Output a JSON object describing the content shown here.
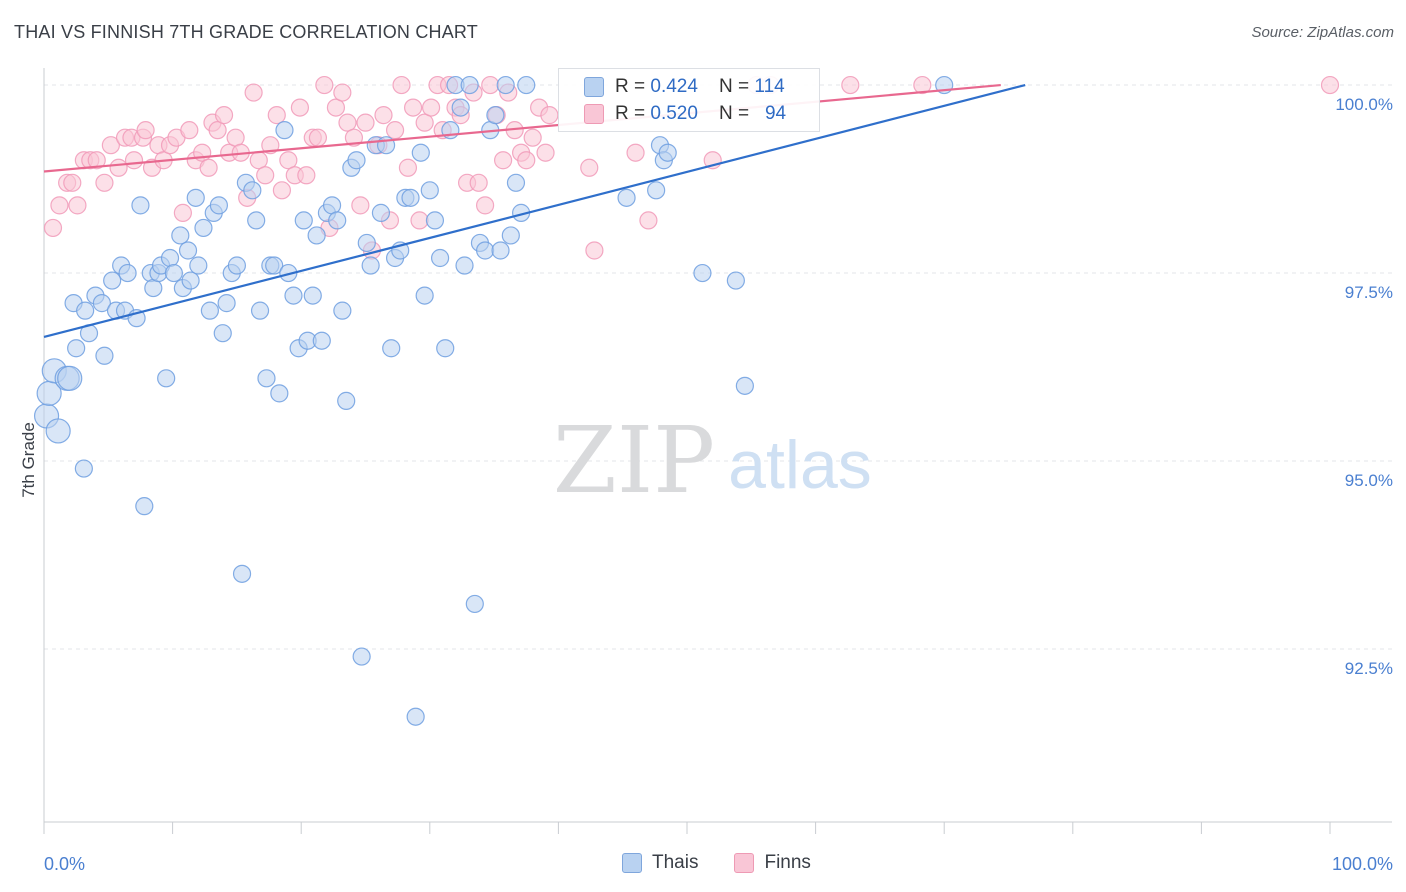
{
  "title": "THAI VS FINNISH 7TH GRADE CORRELATION CHART",
  "source": "Source: ZipAtlas.com",
  "watermark": {
    "zip": "ZIP",
    "atlas": "atlas"
  },
  "legend_stats": [
    {
      "r_label": "R = ",
      "r_value": "0.424",
      "n_label": "N = ",
      "n_value": "114",
      "color": "#6f9fe0"
    },
    {
      "r_label": "R = ",
      "r_value": "0.520",
      "n_label": "N = ",
      "n_value": "94",
      "color": "#f19ab8"
    }
  ],
  "bottom_legend": [
    {
      "label": "Thais"
    },
    {
      "label": "Finns"
    }
  ],
  "chart_data": {
    "type": "scatter",
    "title": "THAI VS FINNISH 7TH GRADE CORRELATION CHART",
    "xlabel": "",
    "ylabel": "7th Grade",
    "xlim": [
      0,
      100
    ],
    "ylim": [
      90.2,
      100.2
    ],
    "x_tick_labels": [
      "0.0%",
      "100.0%"
    ],
    "y_ticks": [
      92.5,
      95.0,
      97.5,
      100.0
    ],
    "y_tick_labels": [
      "92.5%",
      "95.0%",
      "97.5%",
      "100.0%"
    ],
    "grid": true,
    "series": [
      {
        "name": "Thais",
        "color": "#6f9fe0",
        "fill": "#b9d2f1",
        "trend": {
          "x0": 0,
          "y0": 96.65,
          "x1": 76.3,
          "y1": 100.0
        },
        "points": [
          [
            0.2,
            95.6
          ],
          [
            0.4,
            95.9
          ],
          [
            0.8,
            96.2
          ],
          [
            1.1,
            95.4
          ],
          [
            1.8,
            96.1
          ],
          [
            2.0,
            96.1
          ],
          [
            2.5,
            96.5
          ],
          [
            2.3,
            97.1
          ],
          [
            3.1,
            94.9
          ],
          [
            3.5,
            96.7
          ],
          [
            3.2,
            97.0
          ],
          [
            4.0,
            97.2
          ],
          [
            4.7,
            96.4
          ],
          [
            4.5,
            97.1
          ],
          [
            5.3,
            97.4
          ],
          [
            5.6,
            97.0
          ],
          [
            6.0,
            97.6
          ],
          [
            6.3,
            97.0
          ],
          [
            6.5,
            97.5
          ],
          [
            7.2,
            96.9
          ],
          [
            7.5,
            98.4
          ],
          [
            7.8,
            94.4
          ],
          [
            8.3,
            97.5
          ],
          [
            8.5,
            97.3
          ],
          [
            8.9,
            97.5
          ],
          [
            9.1,
            97.6
          ],
          [
            9.5,
            96.1
          ],
          [
            9.8,
            97.7
          ],
          [
            10.1,
            97.5
          ],
          [
            10.6,
            98.0
          ],
          [
            10.8,
            97.3
          ],
          [
            11.2,
            97.8
          ],
          [
            11.4,
            97.4
          ],
          [
            11.8,
            98.5
          ],
          [
            12.0,
            97.6
          ],
          [
            12.4,
            98.1
          ],
          [
            12.9,
            97.0
          ],
          [
            13.2,
            98.3
          ],
          [
            13.6,
            98.4
          ],
          [
            13.9,
            96.7
          ],
          [
            14.2,
            97.1
          ],
          [
            14.6,
            97.5
          ],
          [
            15.0,
            97.6
          ],
          [
            15.4,
            93.5
          ],
          [
            15.7,
            98.7
          ],
          [
            16.2,
            98.6
          ],
          [
            16.5,
            98.2
          ],
          [
            16.8,
            97.0
          ],
          [
            17.3,
            96.1
          ],
          [
            17.6,
            97.6
          ],
          [
            17.9,
            97.6
          ],
          [
            18.3,
            95.9
          ],
          [
            18.7,
            99.4
          ],
          [
            19.0,
            97.5
          ],
          [
            19.4,
            97.2
          ],
          [
            19.8,
            96.5
          ],
          [
            20.2,
            98.2
          ],
          [
            20.5,
            96.6
          ],
          [
            20.9,
            97.2
          ],
          [
            21.2,
            98.0
          ],
          [
            21.6,
            96.6
          ],
          [
            22.0,
            98.3
          ],
          [
            22.4,
            98.4
          ],
          [
            22.8,
            98.2
          ],
          [
            23.2,
            97.0
          ],
          [
            23.5,
            95.8
          ],
          [
            23.9,
            98.9
          ],
          [
            24.3,
            99.0
          ],
          [
            24.7,
            92.4
          ],
          [
            25.1,
            97.9
          ],
          [
            25.4,
            97.6
          ],
          [
            25.8,
            99.2
          ],
          [
            26.2,
            98.3
          ],
          [
            26.6,
            99.2
          ],
          [
            27.0,
            96.5
          ],
          [
            27.3,
            97.7
          ],
          [
            27.7,
            97.8
          ],
          [
            28.1,
            98.5
          ],
          [
            28.5,
            98.5
          ],
          [
            28.9,
            91.6
          ],
          [
            29.3,
            99.1
          ],
          [
            29.6,
            97.2
          ],
          [
            30.0,
            98.6
          ],
          [
            30.4,
            98.2
          ],
          [
            30.8,
            97.7
          ],
          [
            31.2,
            96.5
          ],
          [
            31.6,
            99.4
          ],
          [
            32.0,
            100.0
          ],
          [
            32.4,
            99.7
          ],
          [
            32.7,
            97.6
          ],
          [
            33.1,
            100.0
          ],
          [
            33.5,
            93.1
          ],
          [
            33.9,
            97.9
          ],
          [
            34.3,
            97.8
          ],
          [
            34.7,
            99.4
          ],
          [
            35.1,
            99.6
          ],
          [
            35.5,
            97.8
          ],
          [
            35.9,
            100.0
          ],
          [
            36.3,
            98.0
          ],
          [
            36.7,
            98.7
          ],
          [
            37.1,
            98.3
          ],
          [
            37.5,
            100.0
          ],
          [
            45.3,
            98.5
          ],
          [
            47.6,
            98.6
          ],
          [
            47.9,
            99.2
          ],
          [
            48.2,
            99.0
          ],
          [
            48.5,
            99.1
          ],
          [
            51.2,
            97.5
          ],
          [
            53.8,
            97.4
          ],
          [
            54.5,
            96.0
          ],
          [
            70.0,
            100.0
          ]
        ]
      },
      {
        "name": "Finns",
        "color": "#f19ab8",
        "fill": "#f9c6d6",
        "trend": {
          "x0": 0,
          "y0": 98.85,
          "x1": 74.4,
          "y1": 100.0
        },
        "points": [
          [
            0.7,
            98.1
          ],
          [
            1.2,
            98.4
          ],
          [
            1.8,
            98.7
          ],
          [
            2.2,
            98.7
          ],
          [
            2.6,
            98.4
          ],
          [
            3.1,
            99.0
          ],
          [
            3.6,
            99.0
          ],
          [
            4.1,
            99.0
          ],
          [
            4.7,
            98.7
          ],
          [
            5.2,
            99.2
          ],
          [
            5.8,
            98.9
          ],
          [
            6.3,
            99.3
          ],
          [
            6.8,
            99.3
          ],
          [
            7.0,
            99.0
          ],
          [
            7.7,
            99.3
          ],
          [
            7.9,
            99.4
          ],
          [
            8.4,
            98.9
          ],
          [
            8.9,
            99.2
          ],
          [
            9.3,
            99.0
          ],
          [
            9.8,
            99.2
          ],
          [
            10.3,
            99.3
          ],
          [
            10.8,
            98.3
          ],
          [
            11.3,
            99.4
          ],
          [
            11.8,
            99.0
          ],
          [
            12.3,
            99.1
          ],
          [
            12.8,
            98.9
          ],
          [
            13.1,
            99.5
          ],
          [
            13.5,
            99.4
          ],
          [
            14.0,
            99.6
          ],
          [
            14.4,
            99.1
          ],
          [
            14.9,
            99.3
          ],
          [
            15.3,
            99.1
          ],
          [
            15.8,
            98.5
          ],
          [
            16.3,
            99.9
          ],
          [
            16.7,
            99.0
          ],
          [
            17.2,
            98.8
          ],
          [
            17.6,
            99.2
          ],
          [
            18.1,
            99.6
          ],
          [
            18.5,
            98.6
          ],
          [
            19.0,
            99.0
          ],
          [
            19.5,
            98.8
          ],
          [
            19.9,
            99.7
          ],
          [
            20.4,
            98.8
          ],
          [
            20.9,
            99.3
          ],
          [
            21.3,
            99.3
          ],
          [
            21.8,
            100.0
          ],
          [
            22.2,
            98.1
          ],
          [
            22.7,
            99.7
          ],
          [
            23.2,
            99.9
          ],
          [
            23.6,
            99.5
          ],
          [
            24.1,
            99.3
          ],
          [
            24.6,
            98.4
          ],
          [
            25.0,
            99.5
          ],
          [
            25.5,
            97.8
          ],
          [
            26.0,
            99.2
          ],
          [
            26.4,
            99.6
          ],
          [
            26.9,
            98.2
          ],
          [
            27.3,
            99.4
          ],
          [
            27.8,
            100.0
          ],
          [
            28.3,
            98.9
          ],
          [
            28.7,
            99.7
          ],
          [
            29.2,
            98.2
          ],
          [
            29.6,
            99.5
          ],
          [
            30.1,
            99.7
          ],
          [
            30.6,
            100.0
          ],
          [
            31.0,
            99.4
          ],
          [
            31.5,
            100.0
          ],
          [
            32.0,
            99.7
          ],
          [
            32.4,
            99.6
          ],
          [
            32.9,
            98.7
          ],
          [
            33.4,
            99.9
          ],
          [
            33.8,
            98.7
          ],
          [
            34.3,
            98.4
          ],
          [
            34.7,
            100.0
          ],
          [
            35.2,
            99.6
          ],
          [
            35.7,
            99.0
          ],
          [
            36.1,
            99.9
          ],
          [
            36.6,
            99.4
          ],
          [
            37.1,
            99.1
          ],
          [
            37.5,
            99.0
          ],
          [
            38.0,
            99.3
          ],
          [
            38.5,
            99.7
          ],
          [
            39.0,
            99.1
          ],
          [
            39.3,
            99.6
          ],
          [
            42.4,
            98.9
          ],
          [
            42.8,
            97.8
          ],
          [
            46.0,
            99.1
          ],
          [
            47.0,
            98.2
          ],
          [
            52.0,
            99.0
          ],
          [
            55.4,
            100.0
          ],
          [
            56.5,
            100.0
          ],
          [
            62.7,
            100.0
          ],
          [
            68.3,
            100.0
          ],
          [
            100.0,
            100.0
          ]
        ]
      }
    ]
  }
}
